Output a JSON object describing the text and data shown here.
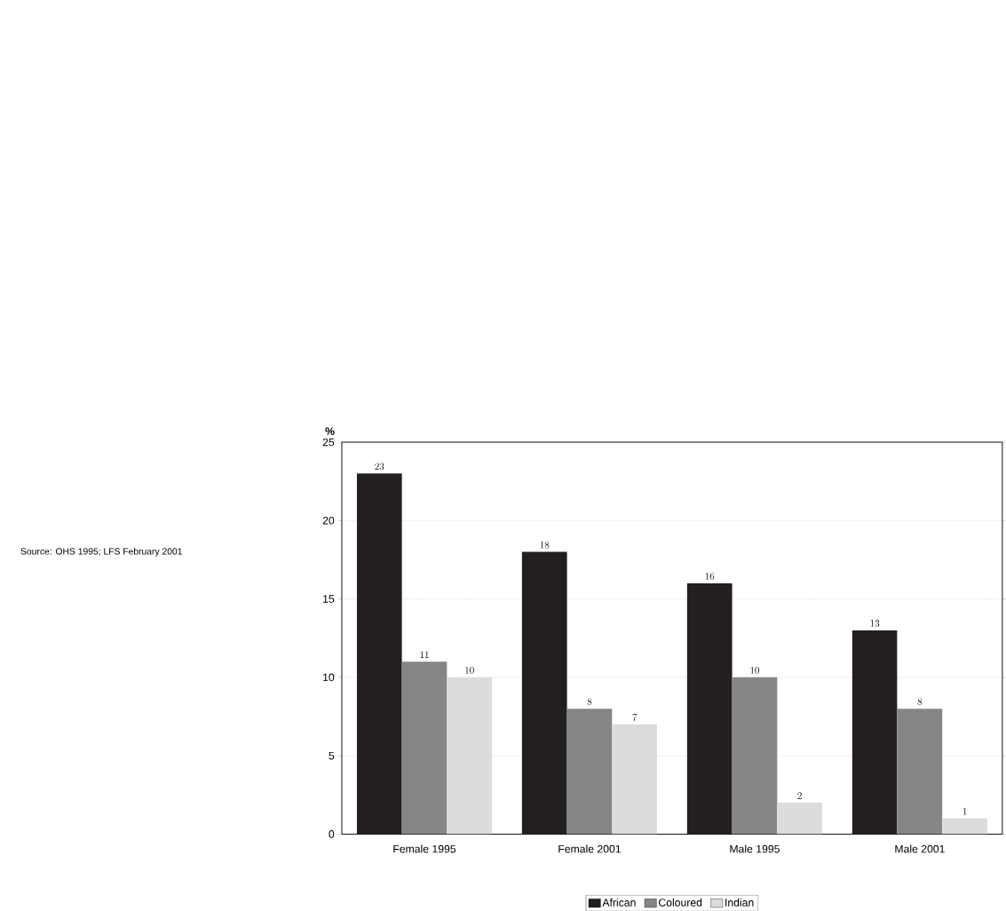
{
  "chart_data": {
    "type": "bar",
    "ylabel": "%",
    "categories": [
      "Female 1995",
      "Female 2001",
      "Male 1995",
      "Male 2001"
    ],
    "series": [
      {
        "name": "African",
        "color": "#231f20",
        "values": [
          23,
          18,
          16,
          13
        ]
      },
      {
        "name": "Coloured",
        "color": "#868686",
        "values": [
          11,
          8,
          10,
          8
        ]
      },
      {
        "name": "Indian",
        "color": "#dcdcdc",
        "values": [
          10,
          7,
          2,
          1
        ]
      }
    ],
    "ylim": [
      0,
      25
    ],
    "yticks": [
      0,
      5,
      10,
      15,
      20,
      25
    ],
    "grid": "y",
    "legend": "bottom",
    "data_labels": true,
    "annotations": [
      "Source: OHS 1995; LFS February 2001"
    ]
  }
}
